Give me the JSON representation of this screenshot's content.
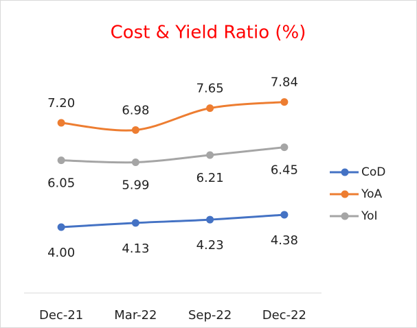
{
  "chart_data": {
    "type": "line",
    "title": "Cost & Yield Ratio (%)",
    "categories": [
      "Dec-21",
      "Mar-22",
      "Sep-22",
      "Dec-22"
    ],
    "series": [
      {
        "name": "CoD",
        "color": "#4472c4",
        "values": [
          4,
          4.13,
          4.23,
          4.38
        ],
        "value_labels": [
          "4.00",
          "4.13",
          "4.23",
          "4.38"
        ]
      },
      {
        "name": "YoA",
        "color": "#ed7d31",
        "values": [
          7.2,
          6.98,
          7.65,
          7.84
        ],
        "value_labels": [
          "7.20",
          "6.98",
          "7.65",
          "7.84"
        ]
      },
      {
        "name": "YoI",
        "color": "#a5a5a5",
        "values": [
          6.05,
          5.99,
          6.21,
          6.45
        ],
        "value_labels": [
          "6.05",
          "5.99",
          "6.21",
          "6.45"
        ]
      }
    ],
    "ylim": [
      2,
      9
    ],
    "legend": "right"
  }
}
